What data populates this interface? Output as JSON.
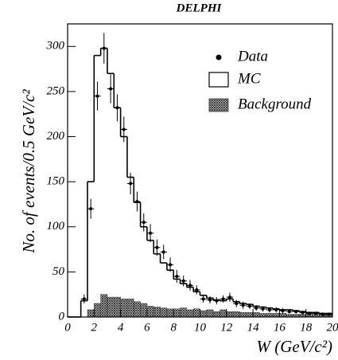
{
  "chart_data": {
    "type": "histogram",
    "title": "DELPHI",
    "xlabel": "W (GeV/c²)",
    "ylabel": "No. of events/0.5 GeV/c²",
    "bins": [
      0,
      0.5,
      1,
      1.5,
      2,
      2.5,
      3,
      3.5,
      4,
      4.5,
      5,
      5.5,
      6,
      6.5,
      7,
      7.5,
      8,
      8.5,
      9,
      9.5,
      10,
      10.5,
      11,
      11.5,
      12,
      12.5,
      13,
      13.5,
      14,
      14.5,
      15,
      15.5,
      16,
      16.5,
      17,
      17.5,
      18,
      18.5,
      19,
      19.5,
      20
    ],
    "series": [
      {
        "name": "MC",
        "color": "#000000",
        "values": [
          0,
          0,
          18,
          150,
          290,
          298,
          270,
          232,
          200,
          155,
          127,
          100,
          85,
          70,
          60,
          52,
          42,
          37,
          33,
          28,
          24,
          21,
          19,
          18,
          20,
          17,
          15,
          14,
          12,
          11,
          10,
          9,
          8,
          8,
          7,
          6,
          5,
          5,
          4,
          4
        ]
      },
      {
        "name": "Background",
        "color": "#333333",
        "values": [
          0,
          0,
          0,
          8,
          15,
          25,
          22,
          22,
          20,
          20,
          17,
          15,
          12,
          11,
          10,
          9,
          9,
          10,
          8,
          9,
          7,
          8,
          6,
          8,
          6,
          6,
          5,
          5,
          5,
          4,
          4,
          4,
          4,
          3,
          3,
          3,
          3,
          3,
          3,
          3
        ]
      }
    ],
    "points": {
      "name": "Data",
      "color": "#000000",
      "x": [
        1.25,
        1.75,
        2.25,
        2.75,
        3.25,
        3.75,
        4.25,
        4.75,
        5.25,
        5.75,
        6.25,
        6.75,
        7.25,
        7.75,
        8.25,
        8.75,
        9.25,
        9.75,
        10.25,
        10.75,
        11.25,
        11.75,
        12.25,
        12.75,
        13.25,
        13.75,
        14.25,
        14.75,
        15.25,
        15.75,
        16.25,
        16.75,
        17.25,
        17.75,
        18.25,
        18.75,
        19.25,
        19.75
      ],
      "values": [
        20,
        120,
        245,
        298,
        253,
        232,
        208,
        148,
        128,
        105,
        93,
        77,
        72,
        58,
        45,
        40,
        35,
        30,
        20,
        19,
        18,
        20,
        22,
        15,
        13,
        12,
        10,
        9,
        8,
        8,
        7,
        6,
        6,
        5,
        4,
        4,
        3,
        3
      ],
      "errors": [
        5,
        11,
        16,
        17,
        16,
        15,
        14,
        12,
        11,
        10,
        10,
        9,
        8,
        8,
        7,
        6,
        6,
        5,
        4,
        4,
        4,
        4,
        5,
        4,
        4,
        3,
        3,
        3,
        3,
        3,
        3,
        2,
        2,
        2,
        2,
        2,
        2,
        2
      ]
    },
    "xlim": [
      0,
      20
    ],
    "ylim": [
      0,
      325
    ],
    "xticks": [
      0,
      2,
      4,
      6,
      8,
      10,
      12,
      14,
      16,
      18,
      20
    ],
    "yticks": [
      0,
      50,
      100,
      150,
      200,
      250,
      300
    ],
    "legend": "upper right"
  }
}
